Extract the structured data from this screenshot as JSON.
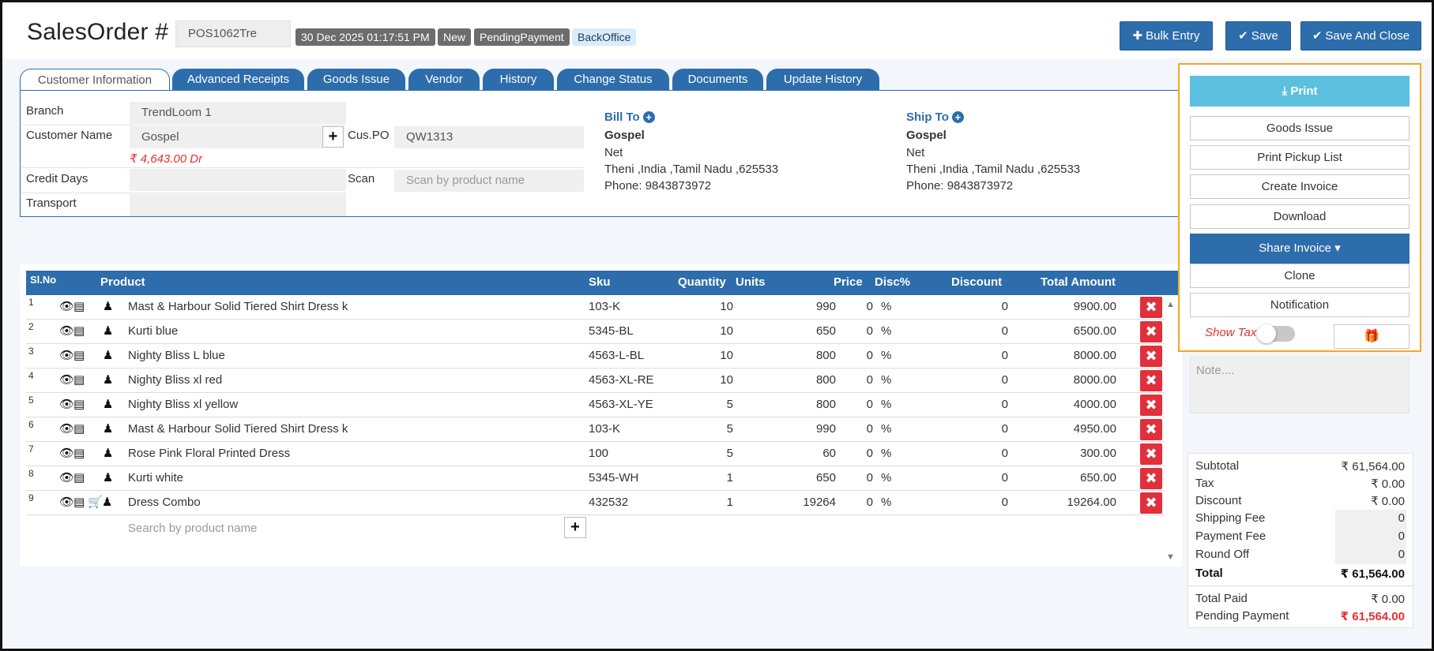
{
  "header": {
    "title": "SalesOrder #",
    "order_no": "POS1062Tre",
    "date": "30 Dec 2025 01:17:51 PM",
    "status_new": "New",
    "status_payment": "PendingPayment",
    "source": "BackOffice",
    "bulk_entry": "Bulk Entry",
    "save": "Save",
    "save_close": "Save And Close"
  },
  "tabs": [
    "Customer Information",
    "Advanced Receipts",
    "Goods Issue",
    "Vendor",
    "History",
    "Change Status",
    "Documents",
    "Update History"
  ],
  "customer": {
    "branch_label": "Branch",
    "branch_value": "TrendLoom 1",
    "name_label": "Customer Name",
    "name_value": "Gospel",
    "balance": "₹ 4,643.00   Dr",
    "cuspo_label": "Cus.PO",
    "cuspo_value": "QW1313",
    "credit_label": "Credit Days",
    "scan_label": "Scan",
    "scan_placeholder": "Scan by product name",
    "transport_label": "Transport"
  },
  "bill_to": {
    "title": "Bill To",
    "name": "Gospel",
    "line1": "Net",
    "line2": "Theni ,India ,Tamil Nadu ,625533",
    "phone": "Phone: 9843873972"
  },
  "ship_to": {
    "title": "Ship To",
    "name": "Gospel",
    "line1": "Net",
    "line2": "Theni ,India ,Tamil Nadu ,625533",
    "phone": "Phone: 9843873972"
  },
  "table": {
    "headers": {
      "sl": "Sl.No",
      "product": "Product",
      "sku": "Sku",
      "quantity": "Quantity",
      "units": "Units",
      "price": "Price",
      "disc": "Disc%",
      "discount": "Discount",
      "total": "Total Amount"
    },
    "rows": [
      {
        "sl": "1",
        "product": "Mast & Harbour Solid Tiered Shirt Dress k",
        "sku": "103-K",
        "qty": "10",
        "price": "990",
        "disc": "0",
        "pct": "%",
        "discount": "0",
        "total": "9900.00"
      },
      {
        "sl": "2",
        "product": "Kurti blue",
        "sku": "5345-BL",
        "qty": "10",
        "price": "650",
        "disc": "0",
        "pct": "%",
        "discount": "0",
        "total": "6500.00"
      },
      {
        "sl": "3",
        "product": "Nighty Bliss L blue",
        "sku": "4563-L-BL",
        "qty": "10",
        "price": "800",
        "disc": "0",
        "pct": "%",
        "discount": "0",
        "total": "8000.00"
      },
      {
        "sl": "4",
        "product": "Nighty Bliss xl red",
        "sku": "4563-XL-RE",
        "qty": "10",
        "price": "800",
        "disc": "0",
        "pct": "%",
        "discount": "0",
        "total": "8000.00"
      },
      {
        "sl": "5",
        "product": "Nighty Bliss xl yellow",
        "sku": "4563-XL-YE",
        "qty": "5",
        "price": "800",
        "disc": "0",
        "pct": "%",
        "discount": "0",
        "total": "4000.00"
      },
      {
        "sl": "6",
        "product": "Mast & Harbour Solid Tiered Shirt Dress k",
        "sku": "103-K",
        "qty": "5",
        "price": "990",
        "disc": "0",
        "pct": "%",
        "discount": "0",
        "total": "4950.00"
      },
      {
        "sl": "7",
        "product": "Rose Pink Floral Printed Dress",
        "sku": "100",
        "qty": "5",
        "price": "60",
        "disc": "0",
        "pct": "%",
        "discount": "0",
        "total": "300.00"
      },
      {
        "sl": "8",
        "product": "Kurti white",
        "sku": "5345-WH",
        "qty": "1",
        "price": "650",
        "disc": "0",
        "pct": "%",
        "discount": "0",
        "total": "650.00"
      },
      {
        "sl": "9",
        "product": "Dress Combo",
        "sku": "432532",
        "qty": "1",
        "price": "19264",
        "disc": "0",
        "pct": "%",
        "discount": "0",
        "total": "19264.00"
      }
    ],
    "search_placeholder": "Search by product name"
  },
  "actions": {
    "print": "Print",
    "goods_issue": "Goods Issue",
    "print_pickup": "Print Pickup List",
    "create_invoice": "Create Invoice",
    "download": "Download",
    "share_invoice": "Share Invoice",
    "clone": "Clone",
    "notification": "Notification",
    "show_tax": "Show Tax",
    "note_placeholder": "Note...."
  },
  "totals": {
    "subtotal_label": "Subtotal",
    "subtotal": "₹ 61,564.00",
    "tax_label": "Tax",
    "tax": "₹ 0.00",
    "discount_label": "Discount",
    "discount": "₹ 0.00",
    "shipping_label": "Shipping Fee",
    "shipping": "0",
    "payment_fee_label": "Payment Fee",
    "payment_fee": "0",
    "round_off_label": "Round Off",
    "round_off": "0",
    "total_label": "Total",
    "total": "₹ 61,564.00",
    "paid_label": "Total Paid",
    "paid": "₹ 0.00",
    "pending_label": "Pending Payment",
    "pending": "₹ 61,564.00"
  },
  "colors": {
    "primary": "#2d6dab",
    "info": "#5bc0de",
    "danger": "#e0303c",
    "highlight_border": "#f5a623"
  }
}
